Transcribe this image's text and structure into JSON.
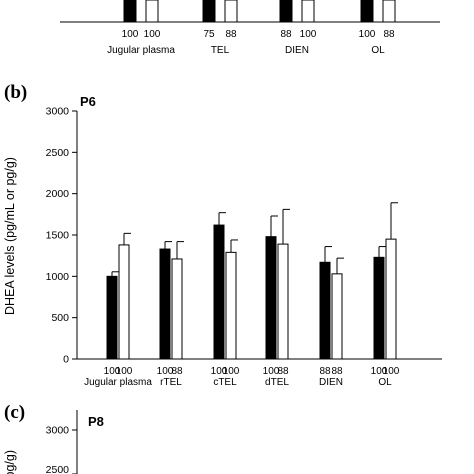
{
  "chart_data": [
    {
      "type": "bar",
      "panel_letter": "",
      "panel_name": "",
      "categories": [
        "Jugular plasma",
        "TEL",
        "DIEN",
        "OL"
      ],
      "sample_percent_labels": [
        [
          "100",
          "100"
        ],
        [
          "75",
          "88"
        ],
        [
          "88",
          "100"
        ],
        [
          "100",
          "88"
        ]
      ],
      "series": [
        {
          "values": [
            null,
            null,
            null,
            null
          ],
          "color": "#000000"
        },
        {
          "values": [
            null,
            null,
            null,
            null
          ],
          "color": "#ffffff"
        }
      ],
      "legend": "none"
    },
    {
      "type": "bar",
      "panel_letter": "(b)",
      "panel_name": "P6",
      "ylabel": "DHEA levels (pg/mL or pg/g)",
      "ylim": [
        0,
        3000
      ],
      "yticks": [
        "0",
        "500",
        "1000",
        "1500",
        "2000",
        "2500",
        "3000"
      ],
      "categories": [
        "Jugular plasma",
        "rTEL",
        "cTEL",
        "dTEL",
        "DIEN",
        "OL"
      ],
      "series": [
        {
          "values": [
            1000,
            1330,
            1620,
            1480,
            1170,
            1230
          ],
          "errors": [
            55,
            90,
            150,
            250,
            190,
            130
          ],
          "color": "#000000"
        },
        {
          "values": [
            1380,
            1210,
            1290,
            1390,
            1030,
            1450
          ],
          "errors": [
            140,
            210,
            150,
            420,
            190,
            440
          ],
          "color": "#ffffff"
        }
      ],
      "sample_percent_labels": [
        [
          "100",
          "100"
        ],
        [
          "100",
          "88"
        ],
        [
          "100",
          "100"
        ],
        [
          "100",
          "88"
        ],
        [
          "88",
          "88"
        ],
        [
          "100",
          "100"
        ]
      ],
      "grid": false,
      "legend": "none"
    },
    {
      "type": "bar",
      "panel_letter": "(c)",
      "panel_name": "P8",
      "ylabel": "(pg/g)",
      "ylim": [
        0,
        3000
      ],
      "yticks": [
        "2500",
        "3000"
      ],
      "categories": [],
      "series": [],
      "grid": false,
      "legend": "none"
    }
  ]
}
